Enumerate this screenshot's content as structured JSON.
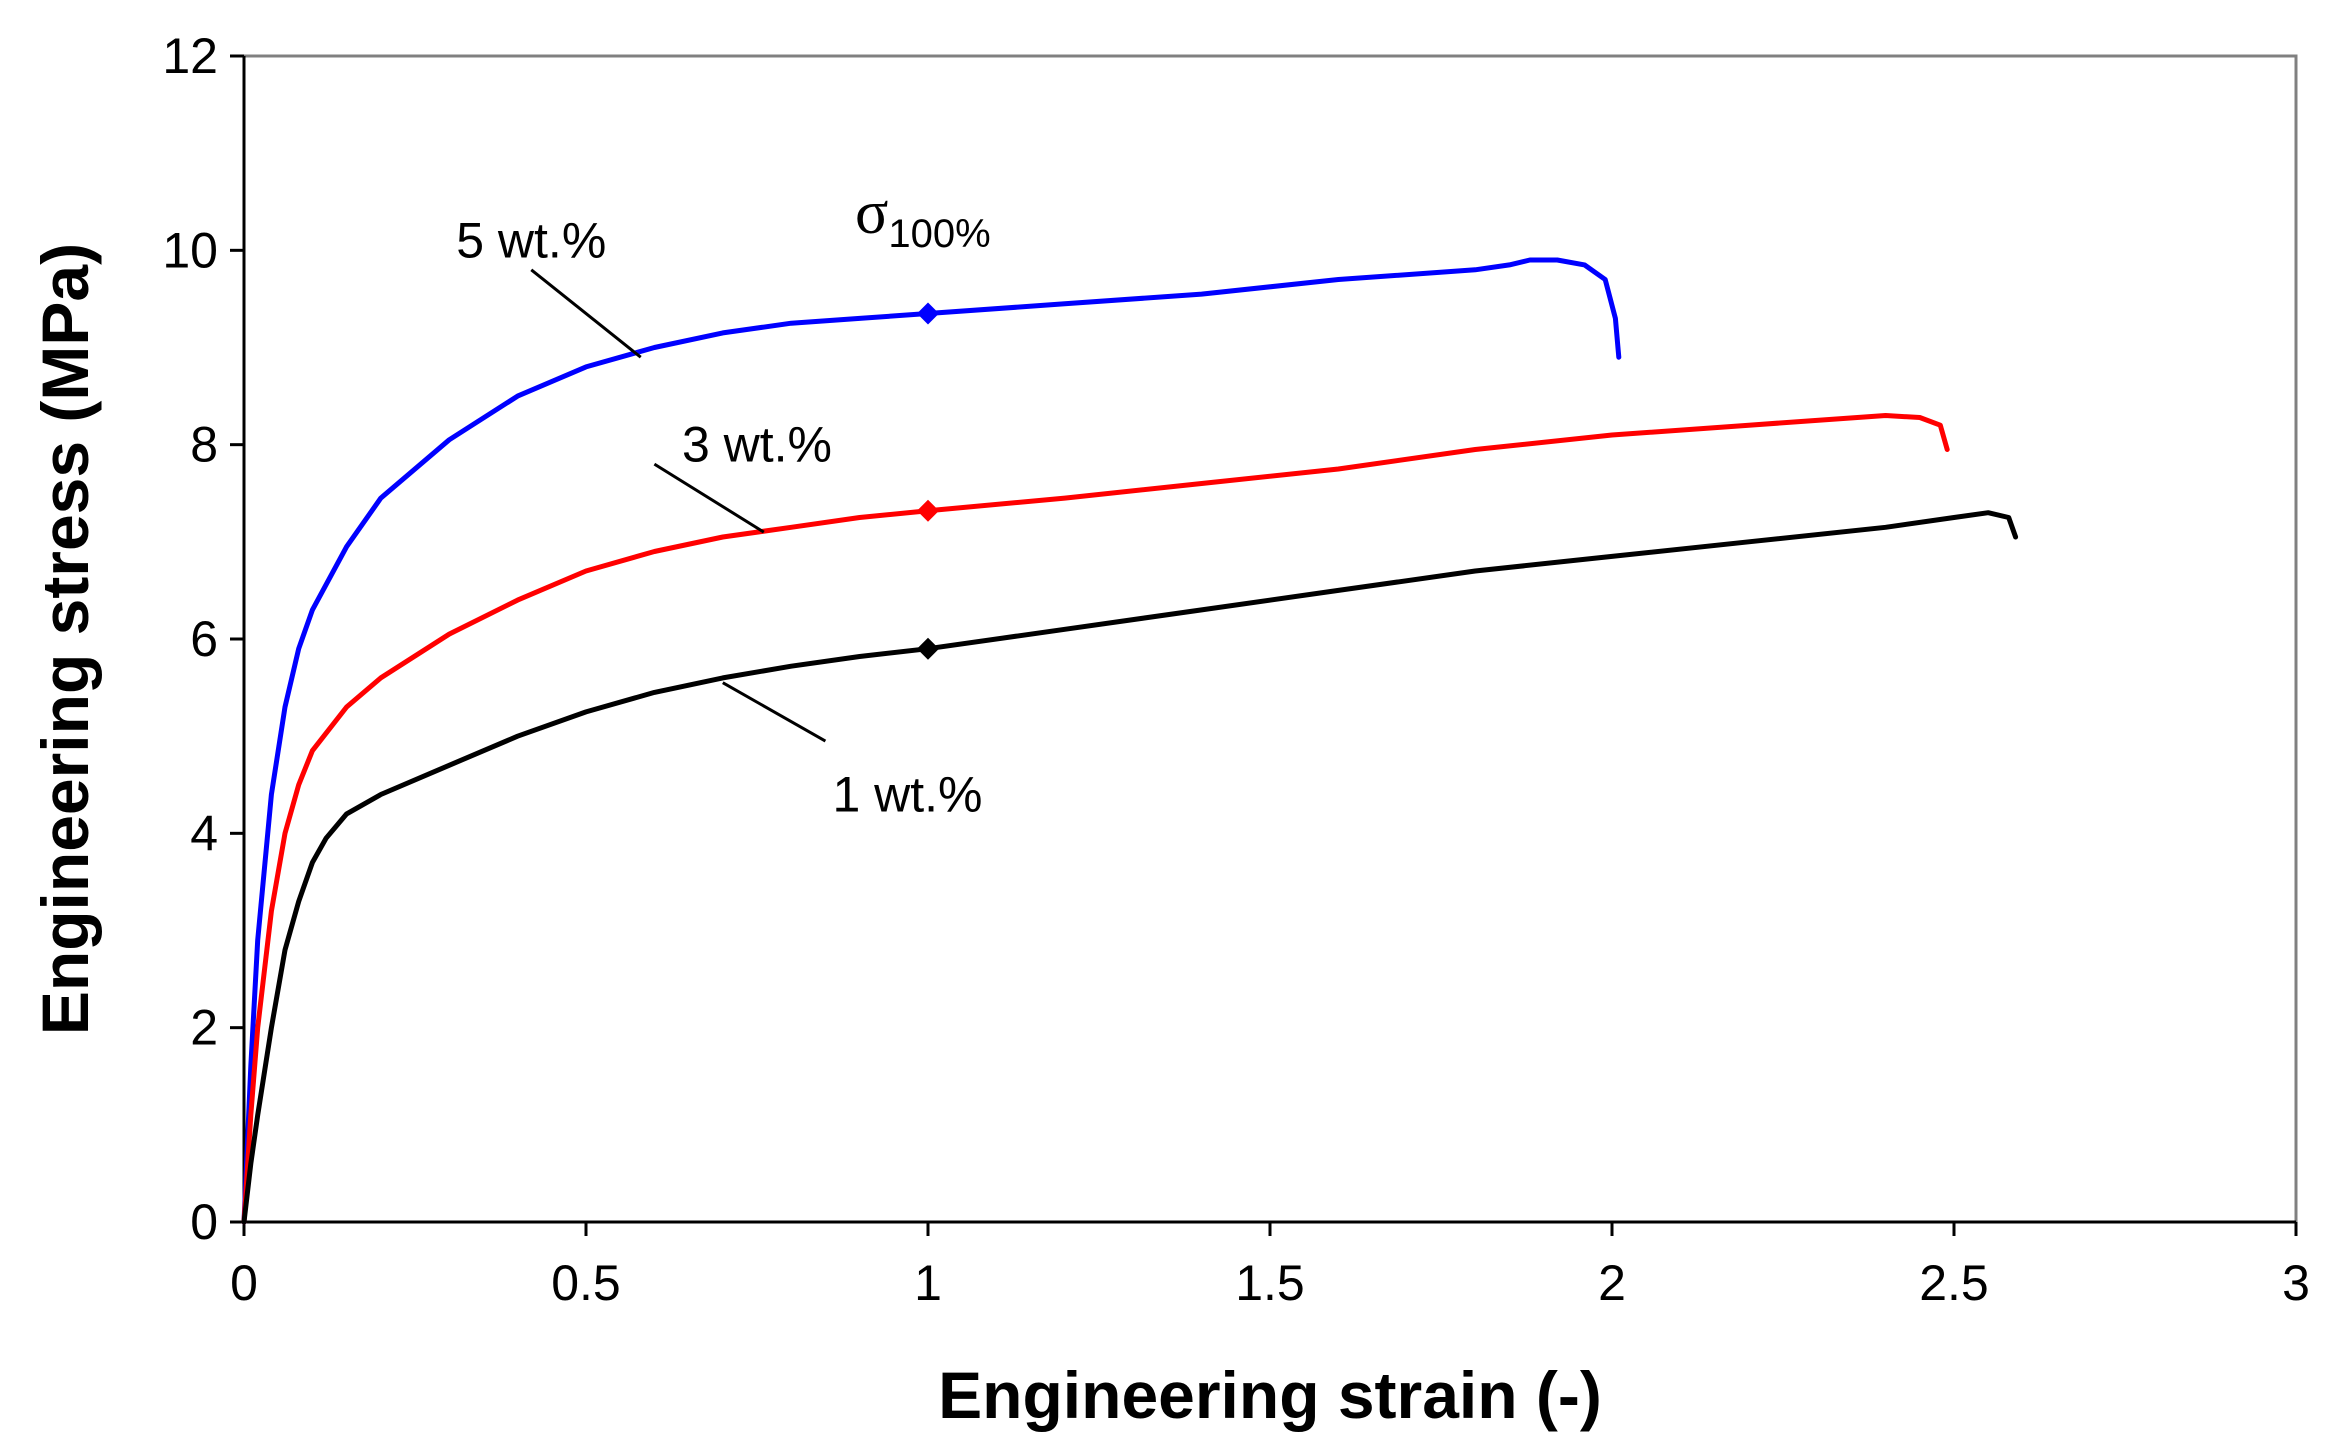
{
  "chart_data": {
    "type": "line",
    "xlabel": "Engineering strain (-)",
    "ylabel": "Engineering stress (MPa)",
    "xlim": [
      0,
      3
    ],
    "ylim": [
      0,
      12
    ],
    "xticks": [
      0,
      0.5,
      1,
      1.5,
      2,
      2.5,
      3
    ],
    "xtick_labels": [
      "0",
      "0.5",
      "1",
      "1.5",
      "2",
      "2.5",
      "3"
    ],
    "yticks": [
      0,
      2,
      4,
      6,
      8,
      10,
      12
    ],
    "ytick_labels": [
      "0",
      "2",
      "4",
      "6",
      "8",
      "10",
      "12"
    ],
    "grid": false,
    "series": [
      {
        "name": "5 wt.%",
        "color": "#0000ff",
        "x": [
          0,
          0.01,
          0.02,
          0.04,
          0.06,
          0.08,
          0.1,
          0.15,
          0.2,
          0.3,
          0.4,
          0.5,
          0.6,
          0.7,
          0.8,
          0.9,
          1.0,
          1.2,
          1.4,
          1.6,
          1.8,
          1.85,
          1.88,
          1.92,
          1.96,
          1.99,
          2.005,
          2.01
        ],
        "y": [
          0,
          1.6,
          2.9,
          4.4,
          5.3,
          5.9,
          6.3,
          6.95,
          7.45,
          8.05,
          8.5,
          8.8,
          9.0,
          9.15,
          9.25,
          9.3,
          9.35,
          9.45,
          9.55,
          9.7,
          9.8,
          9.85,
          9.9,
          9.9,
          9.85,
          9.7,
          9.3,
          8.9
        ]
      },
      {
        "name": "3 wt.%",
        "color": "#ff0000",
        "x": [
          0,
          0.01,
          0.02,
          0.04,
          0.06,
          0.08,
          0.1,
          0.15,
          0.2,
          0.3,
          0.4,
          0.5,
          0.6,
          0.7,
          0.8,
          0.9,
          1.0,
          1.2,
          1.4,
          1.6,
          1.8,
          2.0,
          2.2,
          2.4,
          2.45,
          2.48,
          2.49
        ],
        "y": [
          0,
          1.1,
          2.0,
          3.2,
          4.0,
          4.5,
          4.85,
          5.3,
          5.6,
          6.05,
          6.4,
          6.7,
          6.9,
          7.05,
          7.15,
          7.25,
          7.32,
          7.45,
          7.6,
          7.75,
          7.95,
          8.1,
          8.2,
          8.3,
          8.28,
          8.2,
          7.95
        ]
      },
      {
        "name": "1 wt.%",
        "color": "#000000",
        "x": [
          0,
          0.01,
          0.02,
          0.04,
          0.06,
          0.08,
          0.1,
          0.12,
          0.15,
          0.2,
          0.3,
          0.4,
          0.5,
          0.6,
          0.7,
          0.8,
          0.9,
          1.0,
          1.2,
          1.4,
          1.6,
          1.8,
          2.0,
          2.2,
          2.4,
          2.5,
          2.55,
          2.58,
          2.59
        ],
        "y": [
          0,
          0.6,
          1.1,
          2.0,
          2.8,
          3.3,
          3.7,
          3.95,
          4.2,
          4.4,
          4.7,
          5.0,
          5.25,
          5.45,
          5.6,
          5.72,
          5.82,
          5.9,
          6.1,
          6.3,
          6.5,
          6.7,
          6.85,
          7.0,
          7.15,
          7.25,
          7.3,
          7.25,
          7.05
        ]
      }
    ],
    "markers": [
      {
        "series": "5 wt.%",
        "x": 1.0,
        "y": 9.35
      },
      {
        "series": "3 wt.%",
        "x": 1.0,
        "y": 7.32
      },
      {
        "series": "1 wt.%",
        "x": 1.0,
        "y": 5.9
      }
    ],
    "annotations": [
      {
        "text": "5 wt.%",
        "series": "5 wt.%",
        "label_at": [
          0.42,
          10.1
        ],
        "line_from": [
          0.42,
          9.8
        ],
        "line_to": [
          0.58,
          8.9
        ]
      },
      {
        "text": "3 wt.%",
        "series": "3 wt.%",
        "label_at": [
          0.75,
          8.0
        ],
        "line_from": [
          0.6,
          7.8
        ],
        "line_to": [
          0.76,
          7.1
        ]
      },
      {
        "text": "1 wt.%",
        "series": "1 wt.%",
        "label_at": [
          0.97,
          4.4
        ],
        "line_from": [
          0.85,
          4.95
        ],
        "line_to": [
          0.7,
          5.55
        ]
      }
    ],
    "sigma_label": {
      "symbol": "σ",
      "subscript": "100%"
    }
  }
}
